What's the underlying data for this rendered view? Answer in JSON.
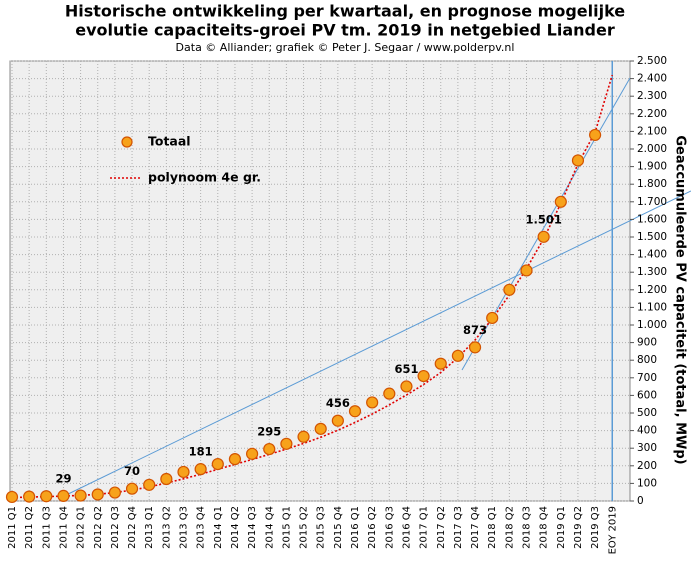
{
  "chart_data": {
    "type": "line",
    "title": "Historische  ontwikkeling  per kwartaal, en prognose mogelijke",
    "title_line2": "evolutie  capaciteits-groei  PV tm. 2019 in netgebied Liander",
    "subtitle": "Data © Alliander; grafiek © Peter J. Segaar / www.polderpv.nl",
    "y_axis_label": "Geaccumuleerde  PV  capaciteit  (totaal, MWp)",
    "categories": [
      "2011 Q1",
      "2011 Q2",
      "2011 Q3",
      "2011 Q4",
      "2012 Q1",
      "2012 Q2",
      "2012 Q3",
      "2012 Q4",
      "2013 Q1",
      "2013 Q2",
      "2013 Q3",
      "2013 Q4",
      "2014 Q1",
      "2014 Q2",
      "2014 Q3",
      "2014 Q4",
      "2015 Q1",
      "2015 Q2",
      "2015 Q3",
      "2015 Q4",
      "2016 Q1",
      "2016 Q2",
      "2016 Q3",
      "2016 Q4",
      "2017 Q1",
      "2017 Q2",
      "2017 Q3",
      "2017 Q4",
      "2018 Q1",
      "2018 Q2",
      "2018 Q3",
      "2018 Q4",
      "2019 Q1",
      "2019 Q2",
      "2019 Q3",
      "EOY 2019"
    ],
    "series": [
      {
        "name": "Totaal",
        "style": "markers",
        "color": "#f7a21b",
        "edge": "#d35400",
        "values": [
          23,
          25,
          27,
          29,
          31,
          37,
          48,
          70,
          92,
          125,
          165,
          181,
          210,
          238,
          268,
          295,
          325,
          365,
          410,
          456,
          510,
          560,
          610,
          651,
          710,
          780,
          825,
          873,
          1040,
          1200,
          1310,
          1501,
          1700,
          1935,
          2080,
          null
        ],
        "value_labels": [
          null,
          null,
          null,
          "29",
          null,
          null,
          null,
          "70",
          null,
          null,
          null,
          "181",
          null,
          null,
          null,
          "295",
          null,
          null,
          null,
          "456",
          null,
          null,
          null,
          "651",
          null,
          null,
          null,
          "873",
          null,
          null,
          null,
          "1.501",
          null,
          null,
          null,
          null
        ]
      },
      {
        "name": "polynoom 4e gr.",
        "style": "dotted",
        "color": "#e00000",
        "values": [
          20,
          22,
          25,
          28,
          32,
          38,
          48,
          62,
          80,
          102,
          126,
          152,
          180,
          208,
          236,
          265,
          295,
          327,
          362,
          402,
          446,
          494,
          546,
          602,
          662,
          730,
          815,
          915,
          1035,
          1170,
          1320,
          1490,
          1690,
          1915,
          2095,
          2420
        ]
      }
    ],
    "ylim": [
      0,
      2500
    ],
    "yticks": [
      0,
      100,
      200,
      300,
      400,
      500,
      600,
      700,
      800,
      900,
      {
        "value": 1000,
        "label": "1.000"
      },
      {
        "value": 1100,
        "label": "1.100"
      },
      {
        "value": 1200,
        "label": "1.200"
      },
      {
        "value": 1300,
        "label": "1.300"
      },
      {
        "value": 1400,
        "label": "1.400"
      },
      {
        "value": 1500,
        "label": "1.500"
      },
      {
        "value": 1600,
        "label": "1.600"
      },
      {
        "value": 1700,
        "label": "1.700"
      },
      {
        "value": 1800,
        "label": "1.800"
      },
      {
        "value": 1900,
        "label": "1.900"
      },
      {
        "value": 2000,
        "label": "2.000"
      },
      {
        "value": 2100,
        "label": "2.100"
      },
      {
        "value": 2200,
        "label": "2.200"
      },
      {
        "value": 2300,
        "label": "2.300"
      },
      {
        "value": 2400,
        "label": "2.400"
      },
      {
        "value": 2500,
        "label": "2.500"
      }
    ],
    "grid": true
  }
}
